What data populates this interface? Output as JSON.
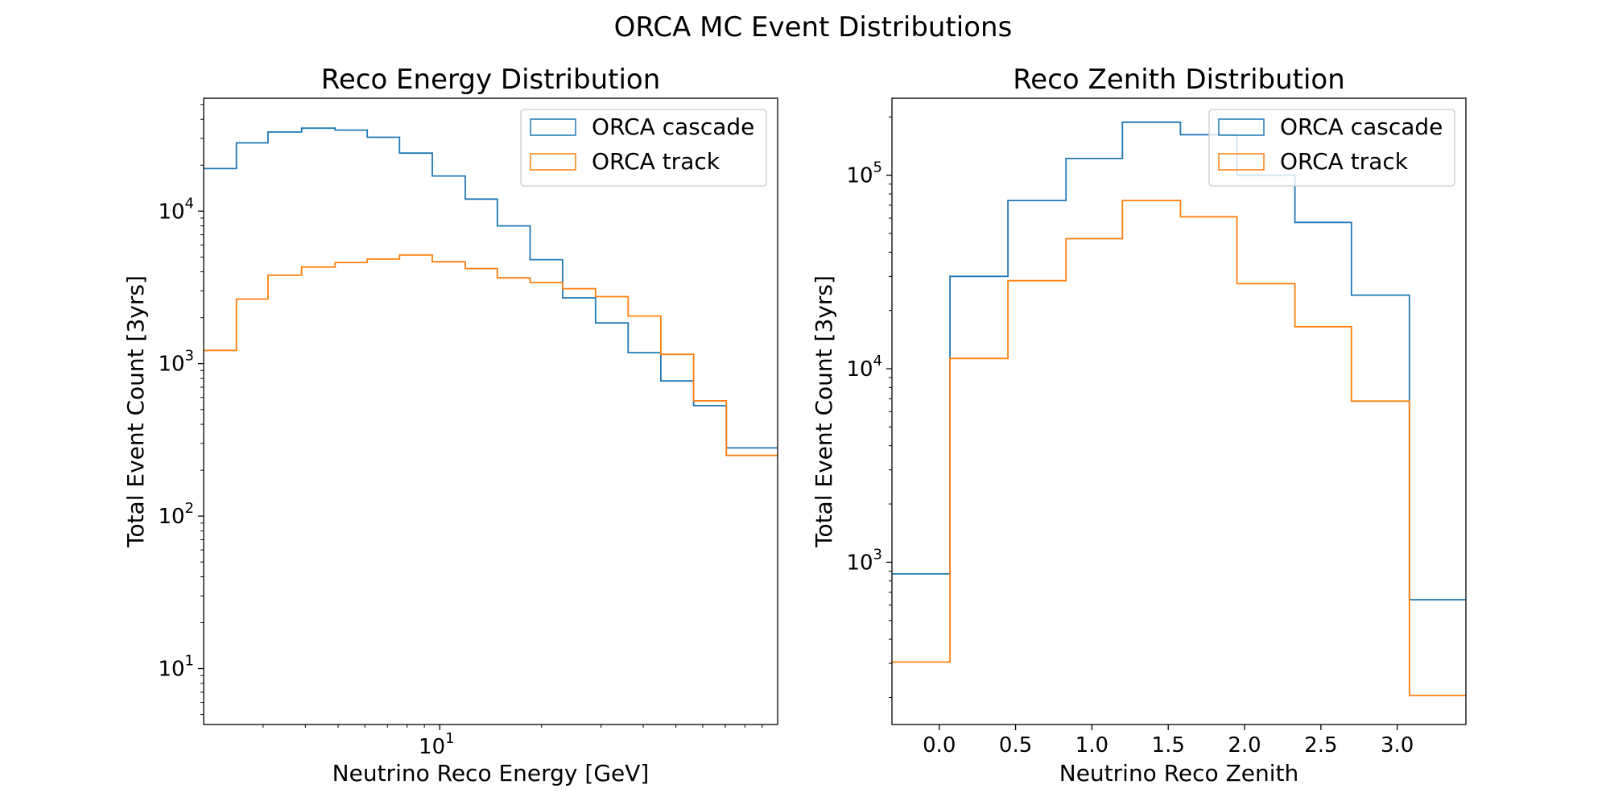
{
  "figure": {
    "title": "ORCA MC Event Distributions"
  },
  "chart_data": [
    {
      "type": "histogram",
      "title": "Reco Energy Distribution",
      "xlabel": "Neutrino Reco Energy [GeV]",
      "ylabel": "Total Event Count [3yrs]",
      "xscale": "log",
      "yscale": "log",
      "xlim": [
        2,
        100
      ],
      "ylim": [
        4.3,
        55000
      ],
      "x_ticks": [
        {
          "value": 10,
          "base": "10",
          "exp": "1"
        }
      ],
      "y_ticks": [
        {
          "value": 10,
          "base": "10",
          "exp": "1"
        },
        {
          "value": 100,
          "base": "10",
          "exp": "2"
        },
        {
          "value": 1000,
          "base": "10",
          "exp": "3"
        },
        {
          "value": 10000,
          "base": "10",
          "exp": "4"
        }
      ],
      "bin_edges": [
        2,
        2.5,
        3.1,
        3.9,
        4.9,
        6.1,
        7.6,
        9.5,
        11.9,
        14.8,
        18.5,
        23.1,
        28.9,
        36.1,
        45.1,
        56.4,
        70.5,
        100
      ],
      "series": [
        {
          "name": "ORCA cascade",
          "color": "#1f77b4",
          "counts": [
            19000,
            28000,
            33000,
            35000,
            34000,
            30500,
            24000,
            17000,
            12000,
            8000,
            4800,
            2700,
            1850,
            1180,
            770,
            530,
            280
          ]
        },
        {
          "name": "ORCA track",
          "color": "#ff7f0e",
          "counts": [
            1220,
            2650,
            3800,
            4300,
            4600,
            4850,
            5150,
            4650,
            4200,
            3650,
            3400,
            3100,
            2750,
            2050,
            1150,
            570,
            250
          ]
        }
      ],
      "legend": {
        "position": "upper right"
      },
      "grid": false
    },
    {
      "type": "histogram",
      "title": "Reco Zenith Distribution",
      "xlabel": "Neutrino Reco Zenith",
      "ylabel": "Total Event Count [3yrs]",
      "xscale": "linear",
      "yscale": "log",
      "xlim": [
        -0.31,
        3.45
      ],
      "ylim": [
        145,
        250000
      ],
      "x_ticks": [
        {
          "value": 0,
          "label": "0.0"
        },
        {
          "value": 0.5,
          "label": "0.5"
        },
        {
          "value": 1.0,
          "label": "1.0"
        },
        {
          "value": 1.5,
          "label": "1.5"
        },
        {
          "value": 2.0,
          "label": "2.0"
        },
        {
          "value": 2.5,
          "label": "2.5"
        },
        {
          "value": 3.0,
          "label": "3.0"
        }
      ],
      "y_ticks": [
        {
          "value": 1000,
          "base": "10",
          "exp": "3"
        },
        {
          "value": 10000,
          "base": "10",
          "exp": "4"
        },
        {
          "value": 100000,
          "base": "10",
          "exp": "5"
        }
      ],
      "bin_edges": [
        -0.31,
        0.07,
        0.45,
        0.83,
        1.2,
        1.58,
        1.95,
        2.33,
        2.7,
        3.08,
        3.45
      ],
      "series": [
        {
          "name": "ORCA cascade",
          "color": "#1f77b4",
          "counts": [
            870,
            30000,
            74000,
            122000,
            188000,
            162000,
            100000,
            57000,
            24000,
            640
          ]
        },
        {
          "name": "ORCA track",
          "color": "#ff7f0e",
          "counts": [
            305,
            11300,
            28500,
            47000,
            74000,
            61000,
            27500,
            16500,
            6800,
            205
          ]
        }
      ],
      "legend": {
        "position": "upper right"
      },
      "grid": false
    }
  ]
}
